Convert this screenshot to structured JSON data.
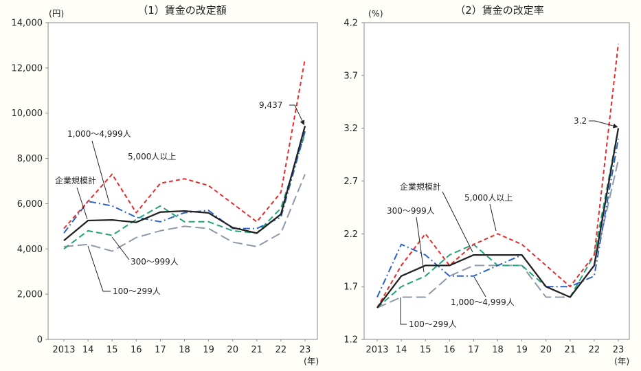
{
  "chart_data": [
    {
      "type": "line",
      "title": "（1）賃金の改定額",
      "ylabel": "(円)",
      "xlabel": "(年)",
      "categories": [
        "2013",
        "14",
        "15",
        "16",
        "17",
        "18",
        "19",
        "20",
        "21",
        "22",
        "23"
      ],
      "ylim": [
        0,
        14000
      ],
      "yticks": [
        0,
        2000,
        4000,
        6000,
        8000,
        10000,
        12000,
        14000
      ],
      "ytick_labels": [
        "0",
        "2,000",
        "4,000",
        "6,000",
        "8,000",
        "10,000",
        "12,000",
        "14,000"
      ],
      "grid": false,
      "series": [
        {
          "name": "企業規模計",
          "color": "#222222",
          "values": [
            4371,
            5254,
            5282,
            5176,
            5627,
            5675,
            5592,
            4940,
            4694,
            5534,
            9437
          ]
        },
        {
          "name": "5,000人以上",
          "color": "#e52b2b",
          "values": [
            4900,
            6100,
            7300,
            5600,
            6900,
            7100,
            6800,
            6000,
            5200,
            6500,
            12400
          ]
        },
        {
          "name": "1,000～4,999人",
          "color": "#2a62c9",
          "values": [
            4700,
            6100,
            5900,
            5400,
            5200,
            5600,
            5700,
            4900,
            4900,
            5400,
            9200
          ]
        },
        {
          "name": "300～999人",
          "color": "#21a37a",
          "values": [
            4000,
            4800,
            4600,
            5300,
            5900,
            5200,
            5200,
            4800,
            4700,
            5800,
            9100
          ]
        },
        {
          "name": "100～299人",
          "color": "#8d99a8",
          "values": [
            4100,
            4200,
            3900,
            4500,
            4800,
            5000,
            4900,
            4300,
            4100,
            4700,
            7300
          ]
        }
      ],
      "annotations": [
        {
          "text": "9,437",
          "series_index": 0,
          "category_index": 10
        }
      ]
    },
    {
      "type": "line",
      "title": "（2）賃金の改定率",
      "ylabel": "(%)",
      "xlabel": "(年)",
      "categories": [
        "2013",
        "14",
        "15",
        "16",
        "17",
        "18",
        "19",
        "20",
        "21",
        "22",
        "23"
      ],
      "ylim": [
        1.2,
        4.2
      ],
      "yticks": [
        1.2,
        1.7,
        2.2,
        2.7,
        3.2,
        3.7,
        4.2
      ],
      "ytick_labels": [
        "1.2",
        "1.7",
        "2.2",
        "2.7",
        "3.2",
        "3.7",
        "4.2"
      ],
      "grid": false,
      "series": [
        {
          "name": "企業規模計",
          "color": "#222222",
          "values": [
            1.5,
            1.8,
            1.9,
            1.9,
            2.0,
            2.0,
            2.0,
            1.7,
            1.6,
            1.9,
            3.2
          ]
        },
        {
          "name": "5,000人以上",
          "color": "#e52b2b",
          "values": [
            1.5,
            1.9,
            2.2,
            1.9,
            2.1,
            2.2,
            2.1,
            1.9,
            1.7,
            2.0,
            4.0
          ]
        },
        {
          "name": "1,000～4,999人",
          "color": "#2a62c9",
          "values": [
            1.6,
            2.1,
            2.0,
            1.8,
            1.8,
            1.9,
            2.0,
            1.7,
            1.7,
            1.8,
            3.1
          ]
        },
        {
          "name": "300～999人",
          "color": "#21a37a",
          "values": [
            1.5,
            1.7,
            1.8,
            2.0,
            2.1,
            1.9,
            1.9,
            1.7,
            1.6,
            2.0,
            3.2
          ]
        },
        {
          "name": "100～299人",
          "color": "#8d99a8",
          "values": [
            1.5,
            1.6,
            1.6,
            1.8,
            1.9,
            1.9,
            1.9,
            1.6,
            1.6,
            1.9,
            2.9
          ]
        }
      ],
      "annotations": [
        {
          "text": "3.2",
          "series_index": 0,
          "category_index": 10
        }
      ]
    }
  ]
}
